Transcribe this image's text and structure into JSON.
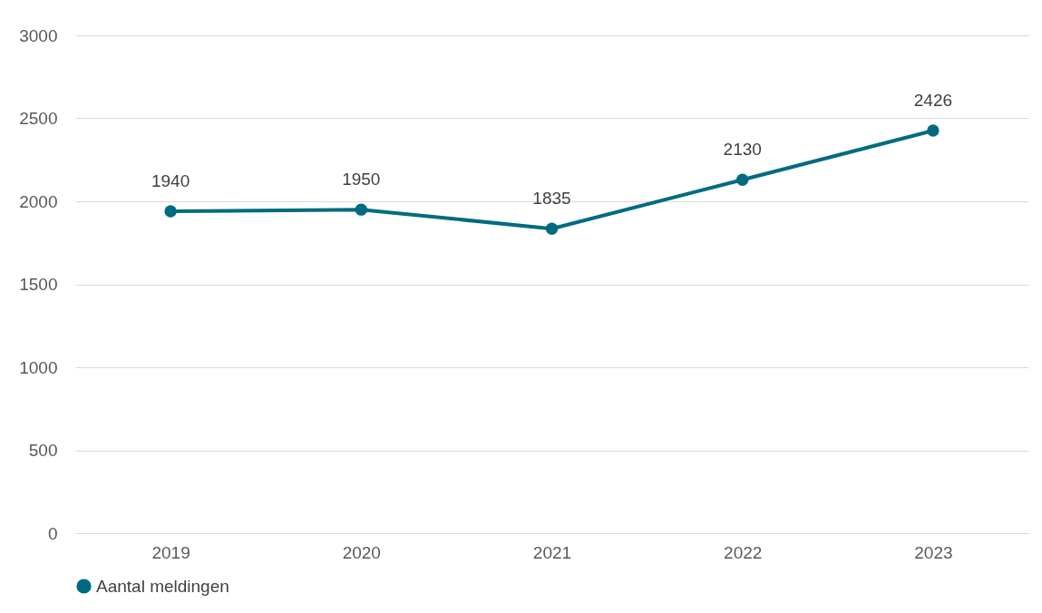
{
  "chart_data": {
    "type": "line",
    "categories": [
      "2019",
      "2020",
      "2021",
      "2022",
      "2023"
    ],
    "series": [
      {
        "name": "Aantal meldingen",
        "color": "#006b80",
        "values": [
          1940,
          1950,
          1835,
          2130,
          2426
        ]
      }
    ],
    "ylim": [
      0,
      3000
    ],
    "yticks": [
      0,
      500,
      1000,
      1500,
      2000,
      2500,
      3000
    ],
    "grid": "y",
    "legend": "bottom",
    "data_labels": true,
    "marker": "circle",
    "line_style": "solid"
  }
}
